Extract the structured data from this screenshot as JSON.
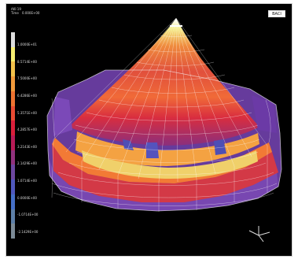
{
  "header": {
    "line1": "AKI  19",
    "line2": "Time",
    "line3": "0.000E+00"
  },
  "badge": "BACI",
  "legend": {
    "colors": [
      "#dedede",
      "#f7ef71",
      "#f3c24b",
      "#f19a3b",
      "#ee7331",
      "#e94b33",
      "#d91f3a",
      "#b81b56",
      "#91327d",
      "#6d47a0",
      "#4f58bd",
      "#456fc7",
      "#5d7fa7",
      "#7b8a96"
    ],
    "labels": [
      "1.0000E+01",
      "8.5714E+00",
      "7.5000E+00",
      "6.4286E+00",
      "5.3571E+00",
      "4.2857E+00",
      "3.2143E+00",
      "2.1429E+00",
      "1.0714E+00",
      "0.0000E+00",
      "-1.0714E+00",
      "-2.1429E+00"
    ]
  },
  "axes_icon": "xyz-triad-icon"
}
